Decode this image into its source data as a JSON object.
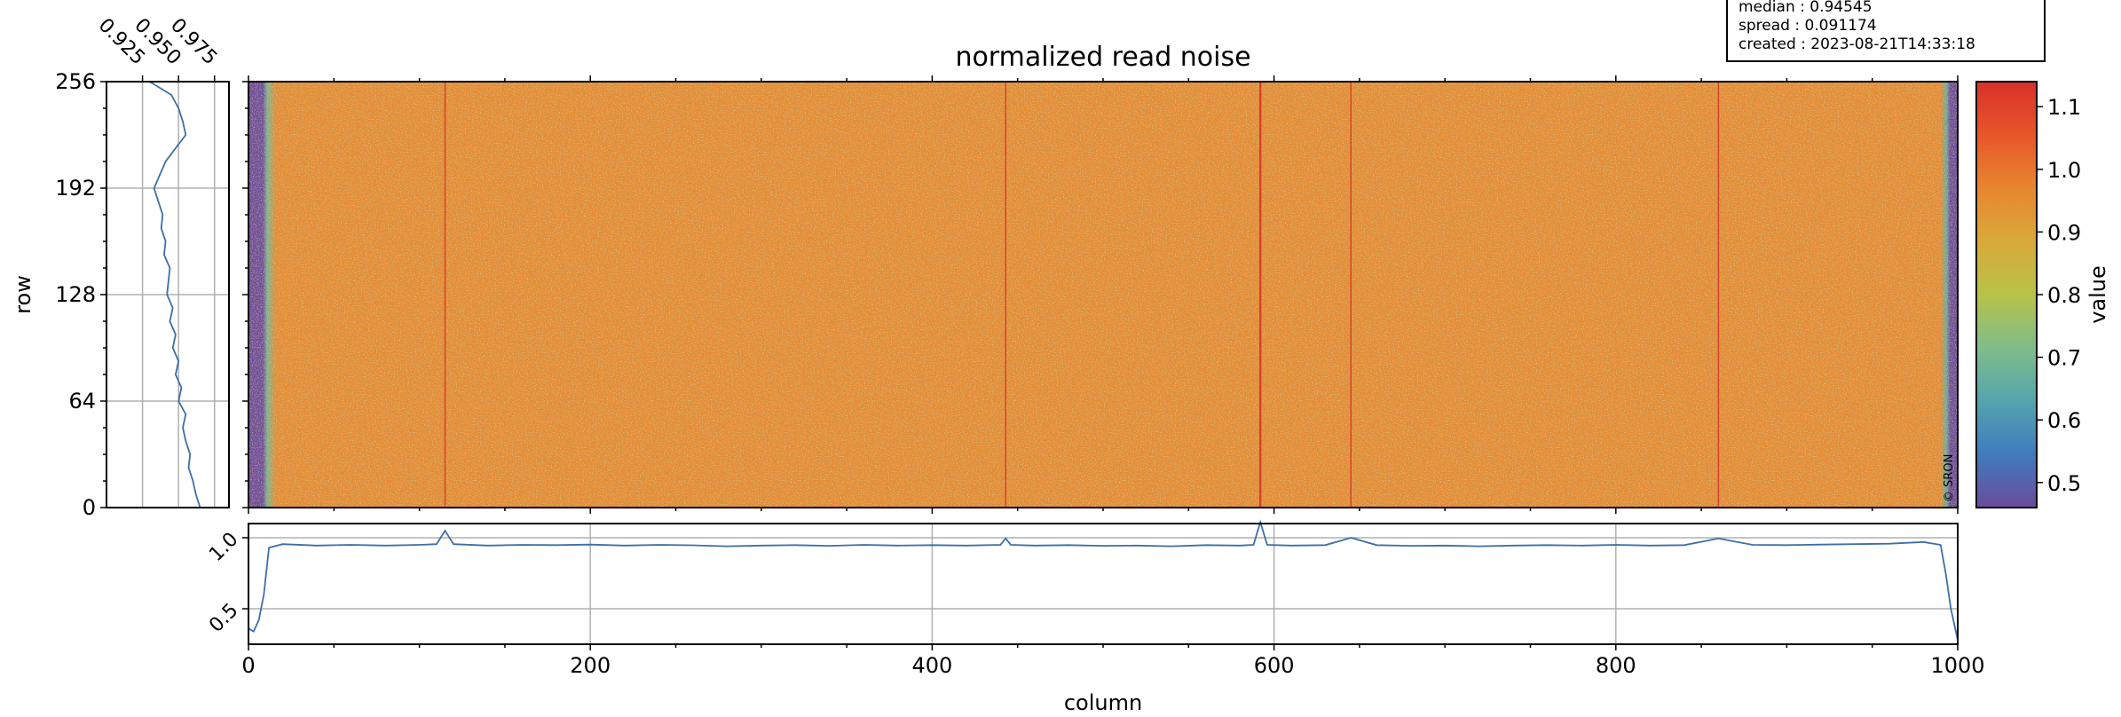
{
  "title": "normalized read noise",
  "copyright": "© SRON",
  "info_box": {
    "median": "median : 0.94545",
    "spread": "spread : 0.091174",
    "created": "created : 2023-08-21T14:33:18"
  },
  "colors": {
    "curve": "#3d6fa5",
    "grid": "#b0b0b0",
    "colormap": [
      "#6a4c9c",
      "#3f7bbd",
      "#55a4ae",
      "#7fbd8a",
      "#b8c247",
      "#d9a93a",
      "#e8862f",
      "#e8562a",
      "#d8302a"
    ]
  },
  "chart_data": [
    {
      "type": "heatmap",
      "name": "image",
      "title": "normalized read noise",
      "xlim": [
        0,
        1000
      ],
      "ylim": [
        0,
        256
      ],
      "ylabel": "row",
      "yticks": [
        "0",
        "64",
        "128",
        "192",
        "256"
      ],
      "colorbar": {
        "label": "value",
        "vmin": 0.46,
        "vmax": 1.14,
        "ticks": [
          "0.5",
          "0.6",
          "0.7",
          "0.8",
          "0.9",
          "1.0",
          "1.1"
        ]
      },
      "typical_value": 0.95,
      "edge_columns_low": [
        [
          0,
          10
        ],
        [
          992,
          1000
        ]
      ],
      "hot_columns": [
        115,
        443,
        592,
        645,
        860
      ]
    },
    {
      "type": "line",
      "name": "row profile",
      "axis": "left",
      "xlim": [
        0.9,
        0.985
      ],
      "xticks": [
        "0.925",
        "0.950",
        "0.975"
      ],
      "ylim": [
        0,
        256
      ],
      "y": [
        0,
        8,
        16,
        24,
        32,
        40,
        48,
        56,
        64,
        72,
        80,
        88,
        96,
        104,
        112,
        120,
        128,
        136,
        144,
        152,
        160,
        168,
        176,
        184,
        192,
        200,
        208,
        216,
        224,
        232,
        240,
        248,
        256
      ],
      "x": [
        0.965,
        0.962,
        0.96,
        0.957,
        0.958,
        0.955,
        0.953,
        0.955,
        0.95,
        0.952,
        0.948,
        0.95,
        0.946,
        0.948,
        0.944,
        0.946,
        0.942,
        0.943,
        0.944,
        0.94,
        0.941,
        0.938,
        0.939,
        0.936,
        0.933,
        0.937,
        0.941,
        0.948,
        0.955,
        0.953,
        0.95,
        0.945,
        0.93
      ]
    },
    {
      "type": "line",
      "name": "column profile",
      "axis": "bottom",
      "xlabel": "column",
      "xlim": [
        0,
        1000
      ],
      "xticks": [
        "0",
        "200",
        "400",
        "600",
        "800",
        "1000"
      ],
      "ylim": [
        0.25,
        1.1
      ],
      "yticks": [
        "0.5",
        "1.0"
      ],
      "x": [
        0,
        3,
        6,
        9,
        12,
        20,
        40,
        60,
        80,
        100,
        110,
        115,
        120,
        140,
        160,
        180,
        200,
        220,
        240,
        260,
        280,
        300,
        320,
        340,
        360,
        380,
        400,
        420,
        440,
        443,
        446,
        460,
        480,
        500,
        520,
        540,
        560,
        580,
        588,
        592,
        596,
        610,
        630,
        645,
        660,
        680,
        700,
        720,
        740,
        760,
        780,
        800,
        820,
        840,
        860,
        880,
        900,
        920,
        940,
        960,
        980,
        990,
        993,
        996,
        1000
      ],
      "y": [
        0.36,
        0.34,
        0.42,
        0.6,
        0.93,
        0.955,
        0.945,
        0.95,
        0.945,
        0.95,
        0.955,
        1.05,
        0.955,
        0.945,
        0.95,
        0.948,
        0.952,
        0.945,
        0.95,
        0.947,
        0.94,
        0.945,
        0.948,
        0.943,
        0.95,
        0.945,
        0.948,
        0.945,
        0.95,
        0.995,
        0.95,
        0.945,
        0.948,
        0.943,
        0.945,
        0.94,
        0.948,
        0.945,
        0.95,
        1.11,
        0.95,
        0.945,
        0.948,
        1.0,
        0.948,
        0.943,
        0.945,
        0.94,
        0.945,
        0.948,
        0.945,
        0.95,
        0.945,
        0.948,
        0.995,
        0.95,
        0.948,
        0.952,
        0.955,
        0.958,
        0.97,
        0.95,
        0.75,
        0.5,
        0.28
      ]
    }
  ]
}
